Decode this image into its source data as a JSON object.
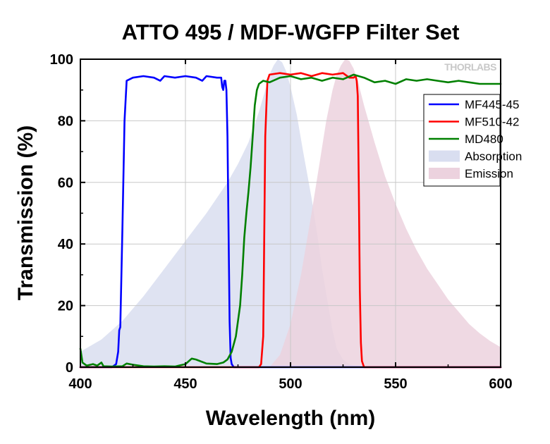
{
  "chart_data": {
    "type": "line",
    "title": "ATTO 495 / MDF-WGFP Filter Set",
    "xlabel": "Wavelength (nm)",
    "ylabel": "Transmission (%)",
    "xlim": [
      400,
      600
    ],
    "ylim": [
      0,
      100
    ],
    "xticks": [
      400,
      450,
      500,
      550,
      600
    ],
    "yticks": [
      0,
      20,
      40,
      60,
      80,
      100
    ],
    "grid": true,
    "legend_position": "top-right",
    "watermark": "THORLABS",
    "series": [
      {
        "name": "MF445-45",
        "kind": "line",
        "color": "#0000ff",
        "x": [
          400,
          415,
          417,
          418,
          418.5,
          419,
          420,
          421,
          422,
          425,
          430,
          435,
          438,
          440,
          445,
          450,
          455,
          458,
          460,
          465,
          467,
          467.5,
          468,
          468.5,
          469,
          469.5,
          470,
          470.5,
          471,
          471.5,
          472,
          473,
          600
        ],
        "y": [
          0,
          0,
          1,
          5,
          12,
          13,
          45,
          80,
          93,
          94,
          94.5,
          94,
          93,
          94.5,
          94,
          94.5,
          94,
          93,
          94.5,
          94,
          94,
          91,
          90,
          93,
          93,
          90,
          75,
          45,
          15,
          3,
          1,
          0,
          0
        ]
      },
      {
        "name": "MF510-42",
        "kind": "line",
        "color": "#ff0000",
        "x": [
          400,
          485,
          486,
          487,
          488,
          489,
          490,
          495,
          500,
          505,
          510,
          515,
          520,
          525,
          528,
          530,
          531,
          531.5,
          532,
          532.5,
          533,
          533.5,
          534,
          535,
          600
        ],
        "y": [
          0,
          0,
          1,
          10,
          75,
          93,
          95,
          95.5,
          95,
          95.5,
          94.5,
          95.5,
          95,
          95.5,
          94,
          94,
          94.5,
          93,
          88,
          60,
          25,
          8,
          2,
          0,
          0
        ]
      },
      {
        "name": "MD480",
        "kind": "line",
        "color": "#008000",
        "x": [
          400,
          401,
          403,
          406,
          408,
          410,
          411,
          415,
          420,
          422,
          425,
          430,
          435,
          440,
          445,
          450,
          453,
          455,
          460,
          465,
          468,
          470,
          472,
          474,
          476,
          477,
          478,
          479,
          480,
          481,
          482,
          483,
          484,
          485,
          487,
          490,
          495,
          500,
          505,
          510,
          515,
          520,
          525,
          530,
          535,
          540,
          545,
          550,
          555,
          560,
          565,
          570,
          575,
          580,
          585,
          590,
          595,
          600
        ],
        "y": [
          6,
          1.5,
          0.5,
          1,
          0.5,
          1.5,
          0.3,
          0.2,
          0.3,
          1.2,
          0.8,
          0.3,
          0.2,
          0.3,
          0.2,
          1,
          2.8,
          2.5,
          1.2,
          1,
          1.5,
          2.5,
          5,
          10,
          20,
          30,
          42,
          50,
          57,
          65,
          75,
          85,
          90,
          92,
          93,
          92.5,
          94,
          94.5,
          93.5,
          94,
          93,
          94,
          93.5,
          95,
          94,
          92.5,
          93,
          92,
          93.5,
          93,
          93.5,
          93,
          92.5,
          93,
          92.5,
          92,
          92,
          92
        ]
      },
      {
        "name": "Absorption",
        "kind": "area",
        "color": "#d9def0",
        "x": [
          400,
          410,
          420,
          430,
          440,
          450,
          460,
          470,
          475,
          480,
          485,
          488,
          490,
          492,
          494,
          496,
          498,
          500,
          503,
          506,
          510,
          513,
          515,
          518,
          520,
          522,
          525,
          528,
          530,
          535,
          540
        ],
        "y": [
          5,
          9,
          15,
          23,
          32,
          41,
          50,
          60,
          66,
          73,
          83,
          90,
          95,
          98,
          100,
          99,
          96,
          91,
          82,
          70,
          55,
          42,
          32,
          20,
          12,
          6,
          2.5,
          1,
          0.5,
          0.2,
          0
        ]
      },
      {
        "name": "Emission",
        "kind": "area",
        "color": "#ecd2de",
        "x": [
          490,
          495,
          500,
          505,
          510,
          514,
          517,
          520,
          522,
          524,
          526,
          528,
          530,
          532,
          535,
          540,
          545,
          550,
          555,
          560,
          565,
          570,
          575,
          580,
          585,
          590,
          595,
          600
        ],
        "y": [
          0,
          4,
          14,
          30,
          50,
          67,
          80,
          90,
          95,
          98,
          100,
          99.5,
          97,
          93,
          85,
          73,
          62,
          53,
          45,
          38,
          32,
          27,
          22,
          18,
          14,
          11,
          8.5,
          6.5
        ]
      }
    ]
  }
}
